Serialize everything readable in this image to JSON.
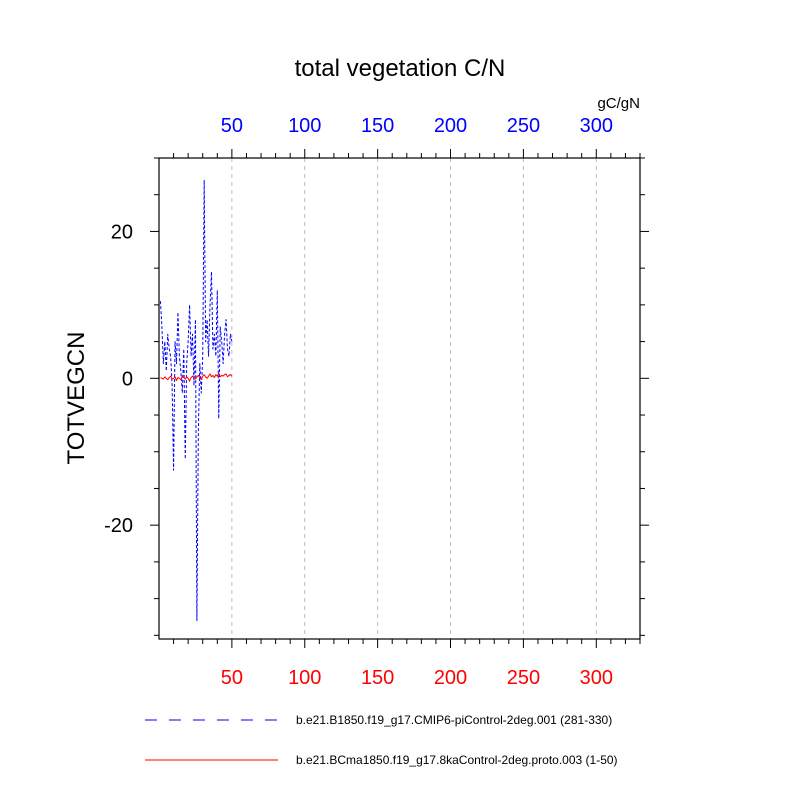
{
  "chart_data": {
    "type": "line",
    "title": "total vegetation C/N",
    "units": "gC/gN",
    "ylabel": "TOTVEGCN",
    "xlabel": "",
    "xlim": [
      0,
      330
    ],
    "ylim": [
      -35.5,
      30
    ],
    "x_ticks": [
      50,
      100,
      150,
      200,
      250,
      300
    ],
    "y_ticks": [
      20,
      0,
      -20
    ],
    "grid": "vertical dashed",
    "legend_position": "bottom",
    "series": [
      {
        "name": "b.e21.B1850.f19_g17.CMIP6-piControl-2deg.001 (281-330)",
        "axis": "top",
        "tick_color": "#0000ff",
        "color": "#0000ff",
        "style": "dashed",
        "x": [
          1,
          2,
          3,
          4,
          5,
          6,
          7,
          8,
          9,
          10,
          11,
          12,
          13,
          14,
          15,
          16,
          17,
          18,
          19,
          20,
          21,
          22,
          23,
          24,
          25,
          26,
          27,
          28,
          29,
          30,
          31,
          32,
          33,
          34,
          35,
          36,
          37,
          38,
          39,
          40,
          41,
          42,
          43,
          44,
          45,
          46,
          47,
          48,
          49,
          50
        ],
        "values": [
          10.5,
          7,
          2,
          5,
          1,
          6,
          4,
          3,
          -1,
          -12.5,
          5,
          2,
          9,
          3,
          1,
          -2,
          4,
          -11,
          2,
          5,
          10,
          3,
          6,
          -1,
          8,
          -33,
          -7,
          2,
          -2,
          3,
          27,
          5,
          8,
          3,
          10,
          14.5,
          4,
          6,
          3,
          12,
          -5.5,
          7,
          5,
          2,
          6,
          8,
          4,
          3,
          6,
          5
        ]
      },
      {
        "name": "b.e21.BCma1850.f19_g17.8kaControl-2deg.proto.003 (1-50)",
        "axis": "bottom",
        "tick_color": "#ff0000",
        "color": "#ff0000",
        "style": "solid",
        "x": [
          1,
          2,
          3,
          4,
          5,
          6,
          7,
          8,
          9,
          10,
          11,
          12,
          13,
          14,
          15,
          16,
          17,
          18,
          19,
          20,
          21,
          22,
          23,
          24,
          25,
          26,
          27,
          28,
          29,
          30,
          31,
          32,
          33,
          34,
          35,
          36,
          37,
          38,
          39,
          40,
          41,
          42,
          43,
          44,
          45,
          46,
          47,
          48,
          49,
          50
        ],
        "values": [
          0.1,
          0.0,
          -0.1,
          0.2,
          0.0,
          -0.2,
          0.1,
          0.3,
          -0.1,
          0.0,
          0.2,
          -0.3,
          0.1,
          0.0,
          -0.2,
          0.3,
          0.1,
          -0.1,
          0.2,
          0.0,
          -0.4,
          0.1,
          0.3,
          0.0,
          -0.1,
          0.2,
          0.4,
          0.1,
          -0.2,
          0.3,
          0.5,
          0.2,
          0.0,
          0.3,
          0.6,
          0.2,
          0.4,
          0.1,
          0.5,
          0.3,
          0.7,
          0.2,
          0.4,
          0.3,
          0.5,
          0.6,
          0.2,
          0.4,
          0.5,
          0.3
        ]
      }
    ]
  }
}
